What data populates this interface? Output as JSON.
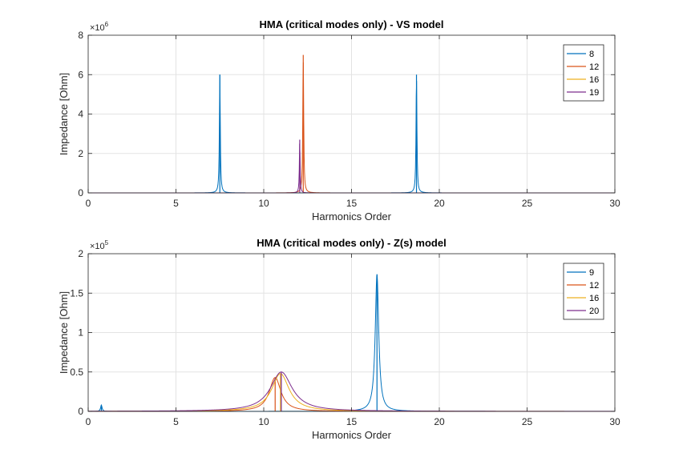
{
  "chart_data": [
    {
      "type": "line",
      "title": "HMA (critical modes only) - VS model",
      "xlabel": "Harmonics Order",
      "ylabel": "Impedance [Ohm]",
      "xlim": [
        0,
        30
      ],
      "ylim": [
        0,
        8000000
      ],
      "xticks": [
        0,
        5,
        10,
        15,
        20,
        25,
        30
      ],
      "yticks": [
        0,
        2,
        4,
        6,
        8
      ],
      "y_exponent_label": "×10",
      "y_exponent": "6",
      "y_multiplier": 1000000,
      "grid": true,
      "legend_position": "top-right",
      "series": [
        {
          "name": "8",
          "color": "#0072BD",
          "peaks": [
            {
              "x": 7.5,
              "y": 6000000,
              "width": 0.03
            },
            {
              "x": 18.7,
              "y": 6000000,
              "width": 0.03
            }
          ]
        },
        {
          "name": "12",
          "color": "#D95319",
          "peaks": [
            {
              "x": 12.25,
              "y": 7000000,
              "width": 0.03
            }
          ]
        },
        {
          "name": "16",
          "color": "#EDB120",
          "peaks": []
        },
        {
          "name": "19",
          "color": "#7E2F8E",
          "peaks": [
            {
              "x": 12.05,
              "y": 2700000,
              "width": 0.025
            }
          ]
        }
      ]
    },
    {
      "type": "line",
      "title": "HMA (critical modes only) - Z(s) model",
      "xlabel": "Harmonics Order",
      "ylabel": "Impedance [Ohm]",
      "xlim": [
        0,
        30
      ],
      "ylim": [
        0,
        200000
      ],
      "xticks": [
        0,
        5,
        10,
        15,
        20,
        25,
        30
      ],
      "yticks": [
        0,
        0.5,
        1,
        1.5,
        2
      ],
      "y_exponent_label": "×10",
      "y_exponent": "5",
      "y_multiplier": 100000,
      "grid": true,
      "legend_position": "top-right",
      "series": [
        {
          "name": "9",
          "color": "#0072BD",
          "peaks": [
            {
              "x": 16.45,
              "y": 174000,
              "width": 0.12
            },
            {
              "x": 0.75,
              "y": 8000,
              "width": 0.05
            }
          ]
        },
        {
          "name": "12",
          "color": "#D95319",
          "peaks": [
            {
              "x": 10.65,
              "y": 43000,
              "width": 0.4
            }
          ]
        },
        {
          "name": "16",
          "color": "#EDB120",
          "peaks": [
            {
              "x": 10.95,
              "y": 48000,
              "width": 0.6
            }
          ]
        },
        {
          "name": "20",
          "color": "#7E2F8E",
          "peaks": [
            {
              "x": 11.0,
              "y": 50000,
              "width": 0.75
            }
          ]
        }
      ]
    }
  ]
}
